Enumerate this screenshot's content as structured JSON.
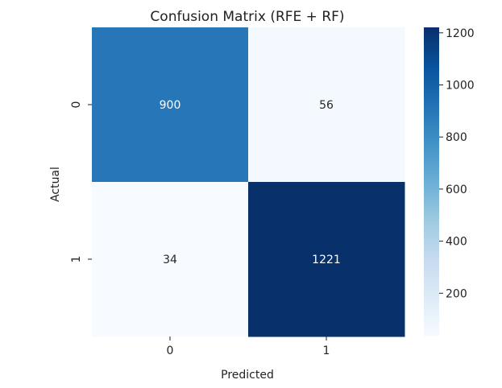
{
  "chart_data": {
    "type": "heatmap",
    "title": "Confusion Matrix (RFE + RF)",
    "xlabel": "Predicted",
    "ylabel": "Actual",
    "x_categories": [
      "0",
      "1"
    ],
    "y_categories": [
      "0",
      "1"
    ],
    "values": [
      [
        900,
        56
      ],
      [
        34,
        1221
      ]
    ],
    "colormap": "Blues",
    "colorbar": {
      "range": [
        34,
        1221
      ],
      "ticks": [
        200,
        400,
        600,
        800,
        1000,
        1200
      ],
      "tick_labels": [
        "200",
        "400",
        "600",
        "800",
        "1000",
        "1200"
      ]
    },
    "cell_text_colors": {
      "light": "#ffffff",
      "dark": "#262626"
    }
  }
}
